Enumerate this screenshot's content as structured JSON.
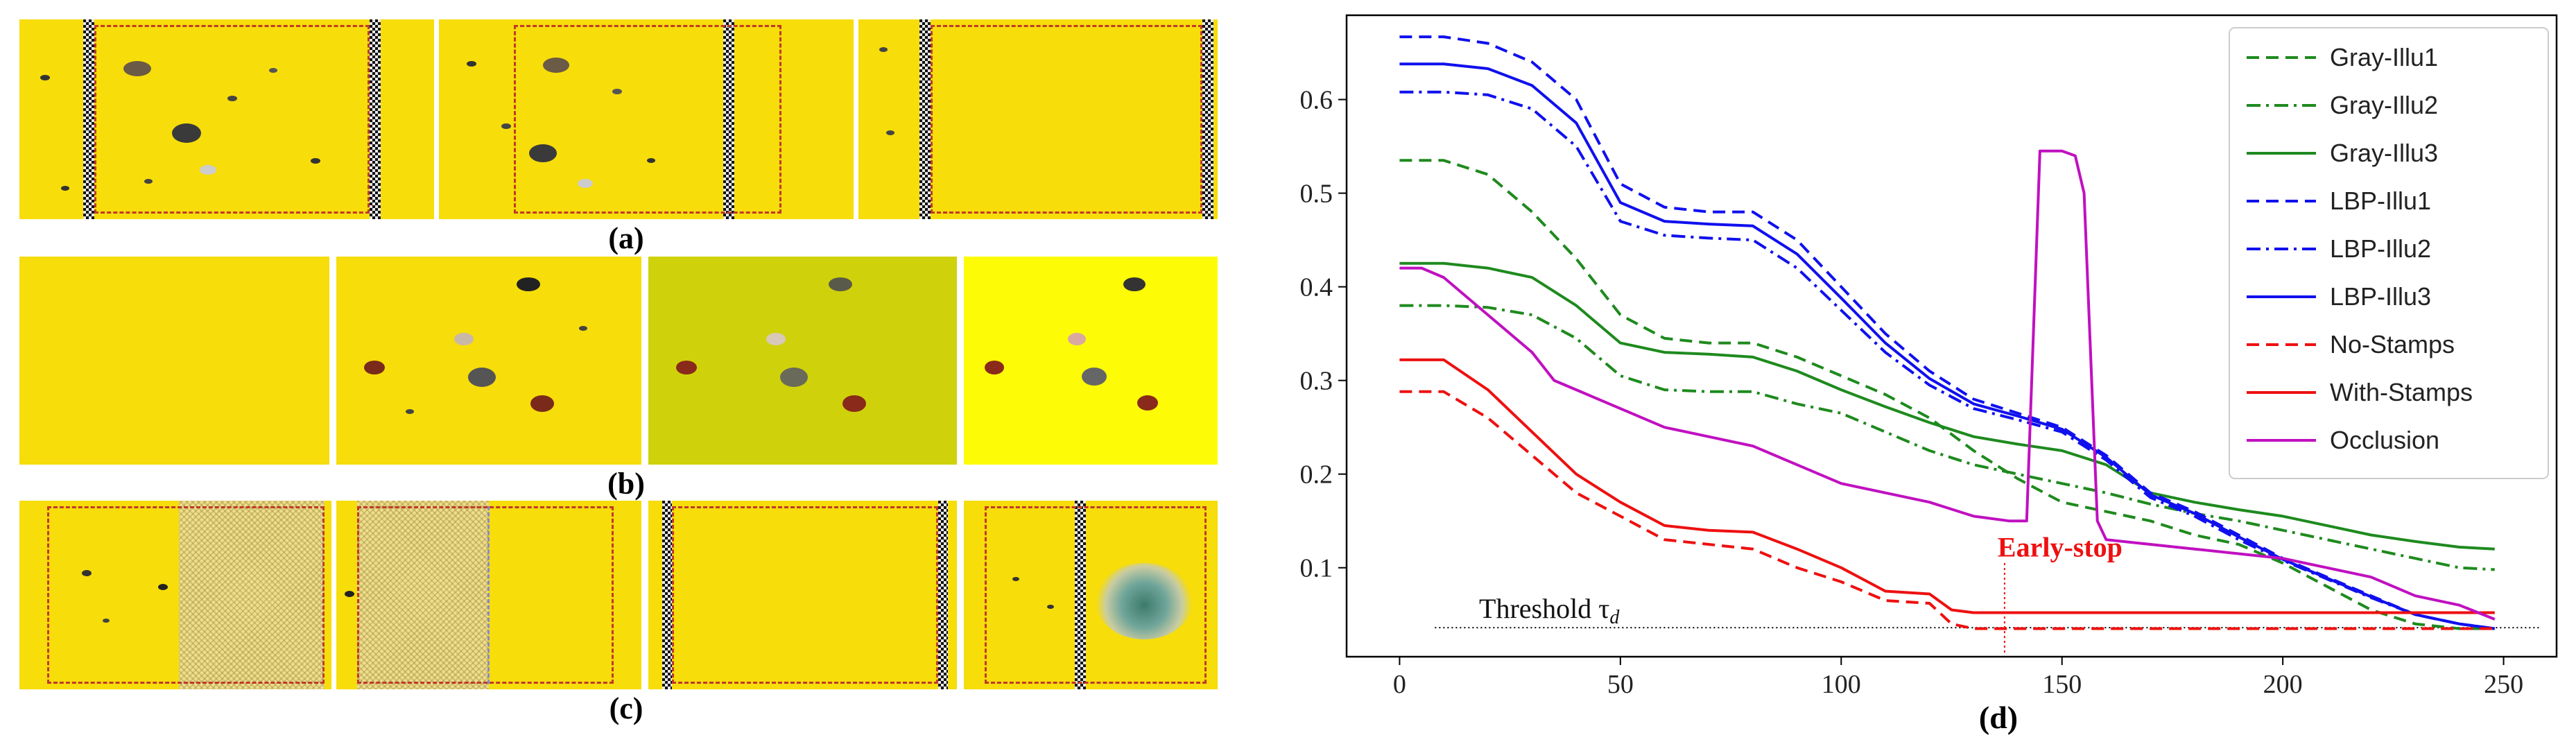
{
  "figure": {
    "panel_labels": {
      "a": "(a)",
      "b": "(b)",
      "c": "(c)",
      "d": "(d)"
    }
  },
  "colors": {
    "trap_yellow": "#f7dd0a",
    "trap_greenish": "#cfd20a",
    "trap_bright": "#fdfc06",
    "dashed_box": "#c0392b",
    "green": "#1e8a1e",
    "blue": "#1010ee",
    "red": "#ee1010",
    "magenta": "#c010c0"
  },
  "chart_data": {
    "type": "line",
    "title": "",
    "xlabel": "",
    "ylabel": "",
    "xlim": [
      -12,
      262
    ],
    "ylim": [
      0.005,
      0.69
    ],
    "xticks": [
      0,
      50,
      100,
      150,
      200,
      250
    ],
    "yticks": [
      0.1,
      0.2,
      0.3,
      0.4,
      0.5,
      0.6
    ],
    "legend_position": "top-right",
    "series": [
      {
        "name": "Gray-Illu1",
        "color": "#1e8a1e",
        "style": "dashed",
        "x": [
          0,
          10,
          20,
          30,
          40,
          50,
          60,
          70,
          80,
          90,
          100,
          110,
          120,
          130,
          140,
          150,
          160,
          170,
          180,
          190,
          200,
          210,
          220,
          230,
          240,
          248
        ],
        "y": [
          0.535,
          0.535,
          0.52,
          0.48,
          0.43,
          0.37,
          0.345,
          0.34,
          0.34,
          0.325,
          0.305,
          0.285,
          0.26,
          0.225,
          0.195,
          0.17,
          0.16,
          0.15,
          0.135,
          0.125,
          0.105,
          0.08,
          0.055,
          0.04,
          0.035,
          0.035
        ]
      },
      {
        "name": "Gray-Illu2",
        "color": "#1e8a1e",
        "style": "dashdot",
        "x": [
          0,
          10,
          20,
          30,
          40,
          50,
          60,
          70,
          80,
          90,
          100,
          110,
          120,
          130,
          140,
          150,
          160,
          170,
          180,
          190,
          200,
          210,
          220,
          230,
          240,
          248
        ],
        "y": [
          0.38,
          0.38,
          0.378,
          0.37,
          0.345,
          0.305,
          0.29,
          0.288,
          0.288,
          0.275,
          0.265,
          0.245,
          0.225,
          0.21,
          0.2,
          0.19,
          0.18,
          0.168,
          0.158,
          0.15,
          0.14,
          0.13,
          0.12,
          0.11,
          0.1,
          0.098
        ]
      },
      {
        "name": "Gray-Illu3",
        "color": "#1e8a1e",
        "style": "solid",
        "x": [
          0,
          10,
          20,
          30,
          40,
          50,
          60,
          70,
          80,
          90,
          100,
          110,
          120,
          130,
          140,
          150,
          160,
          170,
          180,
          190,
          200,
          210,
          220,
          230,
          240,
          248
        ],
        "y": [
          0.425,
          0.425,
          0.42,
          0.41,
          0.38,
          0.34,
          0.33,
          0.328,
          0.325,
          0.31,
          0.29,
          0.272,
          0.255,
          0.24,
          0.232,
          0.225,
          0.21,
          0.18,
          0.17,
          0.162,
          0.155,
          0.145,
          0.135,
          0.128,
          0.122,
          0.12
        ]
      },
      {
        "name": "LBP-Illu1",
        "color": "#1010ee",
        "style": "dashed",
        "x": [
          0,
          10,
          20,
          30,
          40,
          50,
          60,
          70,
          80,
          90,
          100,
          110,
          120,
          130,
          140,
          150,
          160,
          170,
          180,
          190,
          200,
          210,
          220,
          230,
          240,
          248
        ],
        "y": [
          0.667,
          0.667,
          0.66,
          0.64,
          0.6,
          0.51,
          0.485,
          0.48,
          0.48,
          0.45,
          0.4,
          0.35,
          0.31,
          0.28,
          0.265,
          0.25,
          0.22,
          0.18,
          0.16,
          0.135,
          0.11,
          0.09,
          0.07,
          0.05,
          0.04,
          0.035
        ]
      },
      {
        "name": "LBP-Illu2",
        "color": "#1010ee",
        "style": "dashdot",
        "x": [
          0,
          10,
          20,
          30,
          40,
          50,
          60,
          70,
          80,
          90,
          100,
          110,
          120,
          130,
          140,
          150,
          160,
          170,
          180,
          190,
          200,
          210,
          220,
          230,
          240,
          248
        ],
        "y": [
          0.608,
          0.608,
          0.605,
          0.59,
          0.55,
          0.47,
          0.455,
          0.452,
          0.45,
          0.42,
          0.375,
          0.33,
          0.295,
          0.27,
          0.258,
          0.245,
          0.215,
          0.175,
          0.155,
          0.13,
          0.108,
          0.088,
          0.068,
          0.05,
          0.04,
          0.035
        ]
      },
      {
        "name": "LBP-Illu3",
        "color": "#1010ee",
        "style": "solid",
        "x": [
          0,
          10,
          20,
          30,
          40,
          50,
          60,
          70,
          80,
          90,
          100,
          110,
          120,
          130,
          140,
          150,
          160,
          170,
          180,
          190,
          200,
          210,
          220,
          230,
          240,
          248
        ],
        "y": [
          0.638,
          0.638,
          0.633,
          0.615,
          0.575,
          0.49,
          0.47,
          0.467,
          0.465,
          0.435,
          0.388,
          0.34,
          0.302,
          0.275,
          0.262,
          0.248,
          0.218,
          0.178,
          0.158,
          0.133,
          0.109,
          0.089,
          0.069,
          0.05,
          0.04,
          0.035
        ]
      },
      {
        "name": "No-Stamps",
        "color": "#ee1010",
        "style": "dashed",
        "x": [
          0,
          10,
          20,
          30,
          40,
          50,
          60,
          70,
          80,
          90,
          100,
          110,
          120,
          125,
          130,
          140,
          150,
          200,
          248
        ],
        "y": [
          0.288,
          0.288,
          0.26,
          0.22,
          0.18,
          0.155,
          0.13,
          0.125,
          0.12,
          0.1,
          0.085,
          0.065,
          0.062,
          0.04,
          0.035,
          0.035,
          0.035,
          0.035,
          0.035
        ]
      },
      {
        "name": "With-Stamps",
        "color": "#ee1010",
        "style": "solid",
        "x": [
          0,
          10,
          20,
          30,
          40,
          50,
          60,
          70,
          80,
          90,
          100,
          110,
          120,
          125,
          130,
          140,
          150,
          200,
          248
        ],
        "y": [
          0.322,
          0.322,
          0.29,
          0.245,
          0.2,
          0.17,
          0.145,
          0.14,
          0.138,
          0.12,
          0.1,
          0.075,
          0.072,
          0.055,
          0.052,
          0.052,
          0.052,
          0.052,
          0.052
        ]
      },
      {
        "name": "Occlusion",
        "color": "#c010c0",
        "style": "solid",
        "x": [
          0,
          5,
          10,
          20,
          30,
          35,
          40,
          50,
          60,
          70,
          80,
          90,
          100,
          110,
          120,
          130,
          138,
          142,
          145,
          150,
          153,
          155,
          158,
          160,
          170,
          180,
          190,
          200,
          210,
          220,
          230,
          240,
          248
        ],
        "y": [
          0.42,
          0.42,
          0.41,
          0.37,
          0.33,
          0.3,
          0.29,
          0.27,
          0.25,
          0.24,
          0.23,
          0.21,
          0.19,
          0.18,
          0.17,
          0.155,
          0.15,
          0.15,
          0.545,
          0.545,
          0.54,
          0.5,
          0.15,
          0.13,
          0.125,
          0.12,
          0.115,
          0.11,
          0.1,
          0.09,
          0.07,
          0.06,
          0.045
        ]
      }
    ],
    "annotations": {
      "threshold_label": "Threshold τ",
      "threshold_sub": "d",
      "threshold_value": 0.036,
      "early_stop_label": "Early-stop",
      "early_stop_x": 137
    }
  }
}
